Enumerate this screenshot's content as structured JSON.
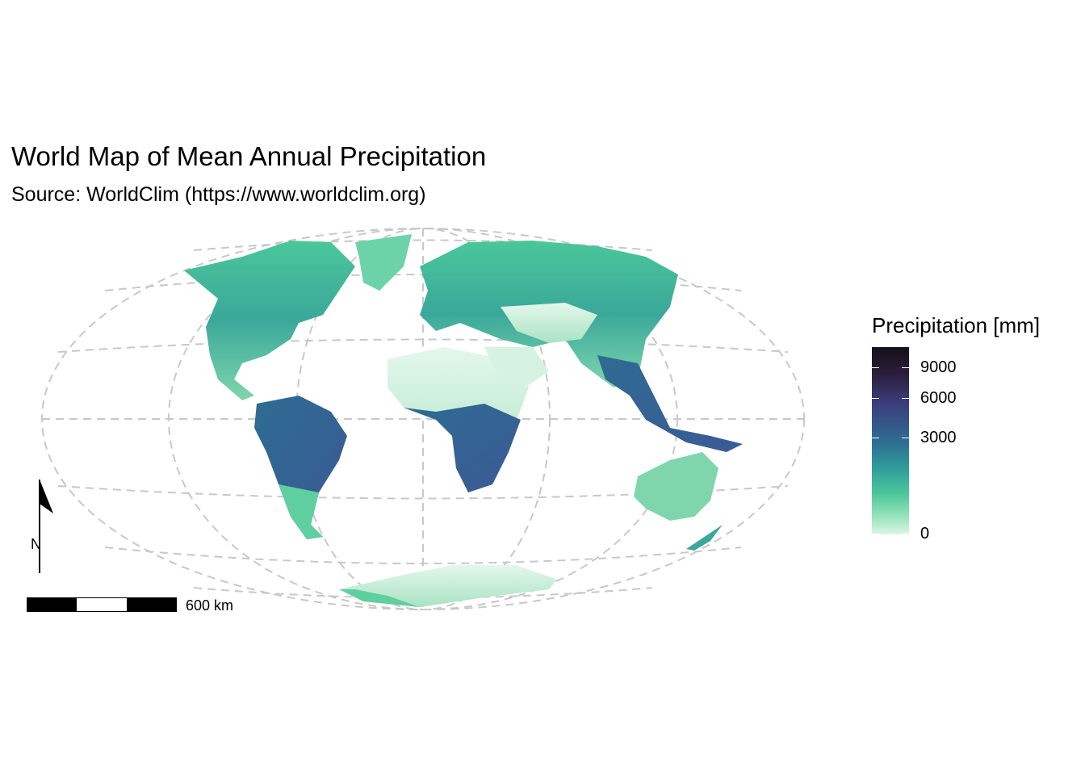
{
  "title": "World Map of Mean Annual Precipitation",
  "subtitle": "Source: WorldClim (https://www.worldclim.org)",
  "legend": {
    "title": "Precipitation [mm]",
    "ticks": [
      {
        "label": "9000",
        "value": 9000
      },
      {
        "label": "6000",
        "value": 6000
      },
      {
        "label": "3000",
        "value": 3000
      },
      {
        "label": "0",
        "value": 0
      }
    ],
    "colors": [
      "#141018",
      "#2a1d3a",
      "#3b3d7c",
      "#2e6b92",
      "#2f9a9a",
      "#4ac79a",
      "#a3e6c0",
      "#dcf5e7"
    ]
  },
  "scale_bar": {
    "label": "600 km"
  },
  "north_arrow": {
    "label": "N"
  },
  "map": {
    "projection": "Mollweide-like (Equal Earth)",
    "graticule_color": "#c8c8c8"
  }
}
